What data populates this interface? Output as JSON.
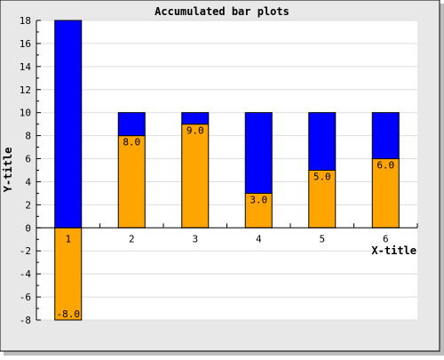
{
  "chart_data": {
    "type": "bar",
    "title": "Accumulated bar plots",
    "xlabel": "X-title",
    "ylabel": "Y-title",
    "categories": [
      "1",
      "2",
      "3",
      "4",
      "5",
      "6"
    ],
    "ylim": [
      -8,
      18
    ],
    "yticks": [
      -8,
      -6,
      -4,
      -2,
      0,
      2,
      4,
      6,
      8,
      10,
      12,
      14,
      16,
      18
    ],
    "grid": true,
    "stacked": true,
    "series": [
      {
        "color": "#FFA500",
        "values": [
          -8,
          8,
          9,
          3,
          5,
          6
        ],
        "labels": [
          "-8.0",
          "8.0",
          "9.0",
          "3.0",
          "5.0",
          "6.0"
        ]
      },
      {
        "color": "#0000FF",
        "values": [
          18,
          2,
          1,
          7,
          5,
          4
        ],
        "labels": [
          "",
          "",
          "",
          "",
          "",
          ""
        ]
      }
    ]
  }
}
